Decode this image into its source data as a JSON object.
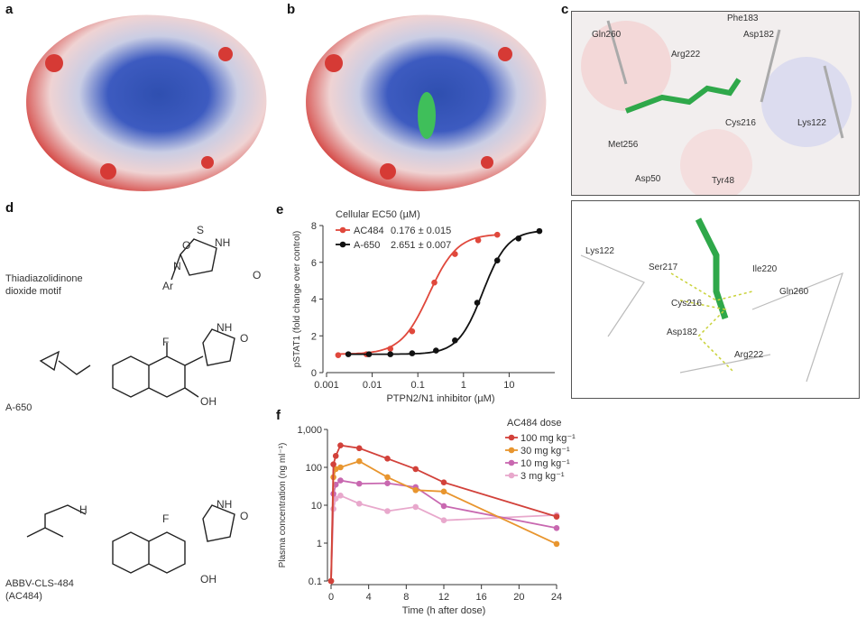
{
  "panels": {
    "a": "a",
    "b": "b",
    "c": "c",
    "d": "d",
    "e": "e",
    "f": "f"
  },
  "panel_c": {
    "top_labels": [
      "Phe183",
      "Gln260",
      "Asp182",
      "Arg222",
      "Cys216",
      "Lys122",
      "Met256",
      "Asp50",
      "Tyr48"
    ],
    "bottom_labels": [
      "Lys122",
      "Ser217",
      "Ile220",
      "Cys216",
      "Gln260",
      "Asp182",
      "Arg222"
    ]
  },
  "panel_d": {
    "motif_label_1": "Thiadiazolidinone",
    "motif_label_2": "dioxide motif",
    "compound_1": "A-650",
    "compound_2_line1": "ABBV-CLS-484",
    "compound_2_line2": "(AC484)",
    "atoms": {
      "O": "O",
      "S": "S",
      "NH": "NH",
      "N": "N",
      "Ar": "Ar",
      "F": "F",
      "OH": "OH",
      "H": "H"
    }
  },
  "colors": {
    "ac484": "#e0483c",
    "a650": "#111111",
    "dose100": "#d2413a",
    "dose30": "#e8952e",
    "dose10": "#c868b0",
    "dose3": "#e8a8cc"
  },
  "chart_data": [
    {
      "type": "scatter",
      "panel": "e",
      "xlabel": "PTPN2/N1 inhibitor (µM)",
      "ylabel": "pSTAT1 (fold change over control)",
      "xscale": "log",
      "xlim": [
        0.001,
        100
      ],
      "ylim": [
        0,
        8
      ],
      "xticks": [
        "0.001",
        "0.01",
        "0.1",
        "1",
        "10"
      ],
      "yticks": [
        "0",
        "2",
        "4",
        "6",
        "8"
      ],
      "legend_title": "Cellular EC50 (µM)",
      "legend_placement": "top-left",
      "series": [
        {
          "name": "AC484",
          "ec50": "0.176 ± 0.015",
          "x": [
            0.0018,
            0.0075,
            0.025,
            0.075,
            0.23,
            0.65,
            2.1,
            5.5
          ],
          "y": [
            0.95,
            1.0,
            1.3,
            2.25,
            4.9,
            6.45,
            7.2,
            7.5
          ]
        },
        {
          "name": "A-650",
          "ec50": "2.651 ± 0.007",
          "x": [
            0.003,
            0.0085,
            0.025,
            0.075,
            0.25,
            0.65,
            2.0,
            5.5,
            16,
            46
          ],
          "y": [
            1.0,
            1.0,
            1.0,
            1.05,
            1.2,
            1.75,
            3.8,
            6.1,
            7.3,
            7.7
          ]
        }
      ]
    },
    {
      "type": "line",
      "panel": "f",
      "xlabel": "Time (h after dose)",
      "ylabel": "Plasma concentration (ng ml⁻¹)",
      "yscale": "log",
      "xlim": [
        0,
        24
      ],
      "ylim": [
        0.1,
        1000
      ],
      "xticks": [
        "0",
        "4",
        "8",
        "12",
        "16",
        "20",
        "24"
      ],
      "yticks": [
        "0.1",
        "1",
        "10",
        "100",
        "1,000"
      ],
      "legend_title": "AC484 dose",
      "legend_placement": "top-right",
      "x": [
        0,
        0.25,
        0.5,
        1,
        3,
        6,
        9,
        12,
        24
      ],
      "series": [
        {
          "name": "100 mg kg⁻¹",
          "y": [
            0.1,
            120,
            200,
            380,
            320,
            170,
            90,
            40,
            5
          ]
        },
        {
          "name": "30 mg kg⁻¹",
          "y": [
            0.1,
            55,
            90,
            100,
            145,
            55,
            25,
            23,
            0.95
          ]
        },
        {
          "name": "10 mg kg⁻¹",
          "y": [
            0.1,
            20,
            35,
            45,
            37,
            38,
            30,
            9.5,
            2.5
          ]
        },
        {
          "name": "3 mg kg⁻¹",
          "y": [
            0.1,
            8,
            15,
            18,
            11,
            7,
            9,
            4,
            5.5
          ]
        }
      ]
    }
  ]
}
